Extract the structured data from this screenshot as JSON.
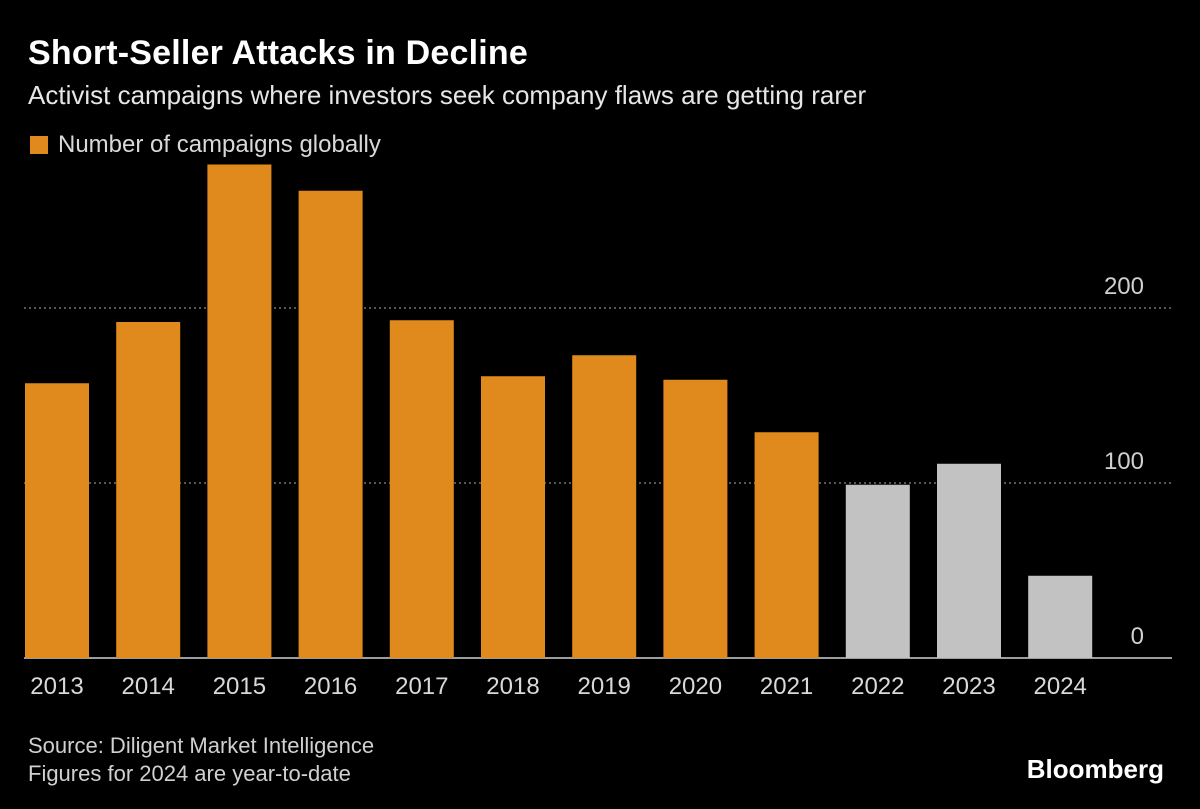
{
  "header": {
    "title": "Short-Seller Attacks in Decline",
    "subtitle": "Activist campaigns where investors seek company flaws are getting rarer"
  },
  "legend": {
    "label": "Number of campaigns globally",
    "color": "#E08A1E"
  },
  "footer": {
    "source": "Source: Diligent Market Intelligence",
    "note": "Figures for 2024 are year-to-date",
    "brand": "Bloomberg"
  },
  "chart_data": {
    "type": "bar",
    "categories": [
      "2013",
      "2014",
      "2015",
      "2016",
      "2017",
      "2018",
      "2019",
      "2020",
      "2021",
      "2022",
      "2023",
      "2024"
    ],
    "values": [
      157,
      192,
      282,
      267,
      193,
      161,
      173,
      159,
      129,
      99,
      111,
      47
    ],
    "highlight_colors": [
      "#E08A1E",
      "#E08A1E",
      "#E08A1E",
      "#E08A1E",
      "#E08A1E",
      "#E08A1E",
      "#E08A1E",
      "#E08A1E",
      "#E08A1E",
      "#C2C2C2",
      "#C2C2C2",
      "#C2C2C2"
    ],
    "yticks": [
      0,
      100,
      200
    ],
    "ylim": [
      0,
      282
    ],
    "grid": "dotted horizontal",
    "ytick_side": "right",
    "legend_position": "top-left",
    "title": "Short-Seller Attacks in Decline",
    "xlabel": "",
    "ylabel": ""
  }
}
